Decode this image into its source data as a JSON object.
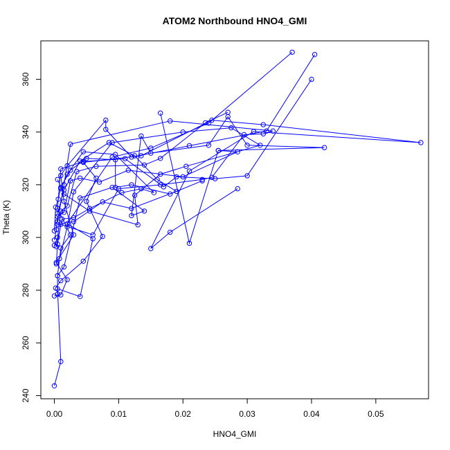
{
  "chart_data": {
    "type": "line",
    "title": "ATOM2 Northbound HNO4_GMI",
    "xlabel": "HNO4_GMI",
    "ylabel": "Theta (K)",
    "xlim": [
      -0.0021,
      0.0582
    ],
    "ylim": [
      238.8,
      374.6
    ],
    "xticks": [
      0.0,
      0.01,
      0.02,
      0.03,
      0.04,
      0.05
    ],
    "xtick_labels": [
      "0.00",
      "0.01",
      "0.02",
      "0.03",
      "0.04",
      "0.05"
    ],
    "yticks": [
      240,
      260,
      280,
      300,
      320,
      340,
      360
    ],
    "ytick_labels": [
      "240",
      "260",
      "280",
      "300",
      "320",
      "340",
      "360"
    ],
    "grid": false,
    "legend": "none",
    "colors": {
      "series": "#0000ff",
      "axis": "#000000",
      "background": "#ffffff"
    },
    "series": [
      {
        "values": [
          [
            0.0,
            243.7
          ],
          [
            0.001,
            252.9
          ],
          [
            0.0005,
            280.5
          ],
          [
            0.004,
            277.6
          ],
          [
            0.006,
            299.5
          ],
          [
            0.002,
            305.2
          ],
          [
            0.009,
            330.5
          ],
          [
            0.015,
            333.9
          ],
          [
            0.024,
            343.4
          ],
          [
            0.037,
            370.3
          ]
        ]
      },
      {
        "values": [
          [
            0.0,
            277.8
          ],
          [
            0.001,
            278.2
          ],
          [
            0.002,
            284.0
          ],
          [
            0.0003,
            290.5
          ],
          [
            0.003,
            301.0
          ],
          [
            0.0015,
            313.7
          ],
          [
            0.001,
            323.5
          ],
          [
            0.002,
            327.2
          ],
          [
            0.008,
            344.5
          ],
          [
            0.008,
            341.0
          ],
          [
            0.012,
            330.5
          ],
          [
            0.021,
            334.8
          ],
          [
            0.033,
            340.4
          ],
          [
            0.0405,
            369.4
          ]
        ]
      },
      {
        "values": [
          [
            0.0005,
            278.5
          ],
          [
            0.0005,
            285.5
          ],
          [
            0.001,
            296.0
          ],
          [
            0.0025,
            301.0
          ],
          [
            0.0005,
            311.0
          ],
          [
            0.001,
            326.0
          ],
          [
            0.0045,
            328.8
          ],
          [
            0.011,
            329.9
          ],
          [
            0.017,
            319.2
          ],
          [
            0.019,
            323.0
          ],
          [
            0.025,
            322.3
          ],
          [
            0.03,
            323.4
          ],
          [
            0.04,
            360.0
          ]
        ]
      },
      {
        "values": [
          [
            0.0002,
            280.8
          ],
          [
            0.001,
            283.6
          ],
          [
            0.0045,
            291.0
          ],
          [
            0.0075,
            300.4
          ],
          [
            0.005,
            313.7
          ],
          [
            0.0065,
            322.5
          ],
          [
            0.0045,
            328.5
          ],
          [
            0.0135,
            331.0
          ],
          [
            0.0245,
            344.5
          ],
          [
            0.0325,
            342.8
          ],
          [
            0.057,
            336.0
          ],
          [
            0.031,
            340.2
          ],
          [
            0.021,
            325.2
          ],
          [
            0.015,
            295.8
          ],
          [
            0.018,
            302.0
          ],
          [
            0.0285,
            318.5
          ]
        ]
      },
      {
        "values": [
          [
            0.0005,
            285.5
          ],
          [
            0.0015,
            288.8
          ],
          [
            0.004,
            315.0
          ],
          [
            0.009,
            319.0
          ],
          [
            0.014,
            310.0
          ],
          [
            0.012,
            308.3
          ],
          [
            0.0135,
            338.5
          ],
          [
            0.015,
            332.0
          ],
          [
            0.024,
            335.0
          ],
          [
            0.027,
            345.8
          ],
          [
            0.03,
            335.0
          ],
          [
            0.042,
            334.1
          ],
          [
            0.0255,
            333.0
          ],
          [
            0.021,
            297.8
          ],
          [
            0.0165,
            347.2
          ]
        ]
      },
      {
        "values": [
          [
            0.0003,
            290.0
          ],
          [
            0.0005,
            297.5
          ],
          [
            0.001,
            305.0
          ],
          [
            0.006,
            301.0
          ],
          [
            0.01,
            318.5
          ],
          [
            0.0165,
            320.0
          ],
          [
            0.023,
            322.0
          ],
          [
            0.0245,
            322.8
          ],
          [
            0.0295,
            339.0
          ],
          [
            0.0325,
            339.3
          ],
          [
            0.034,
            340.4
          ],
          [
            0.018,
            344.2
          ],
          [
            0.0025,
            335.4
          ],
          [
            0.0015,
            320.0
          ],
          [
            0.0005,
            306.0
          ]
        ]
      },
      {
        "values": [
          [
            0.0008,
            292.0
          ],
          [
            0.002,
            304.0
          ],
          [
            0.003,
            317.3
          ],
          [
            0.009,
            336.0
          ],
          [
            0.02,
            340.0
          ],
          [
            0.0275,
            341.6
          ],
          [
            0.032,
            335.0
          ],
          [
            0.0205,
            327.0
          ],
          [
            0.0165,
            324.0
          ],
          [
            0.0125,
            316.0
          ],
          [
            0.013,
            304.8
          ],
          [
            0.0055,
            310.0
          ],
          [
            0.0015,
            316.5
          ],
          [
            0.0005,
            322.0
          ]
        ]
      },
      {
        "values": [
          [
            0.0,
            297.0
          ],
          [
            0.0005,
            300.0
          ],
          [
            0.001,
            310.0
          ],
          [
            0.002,
            312.0
          ],
          [
            0.0035,
            325.0
          ],
          [
            0.0065,
            327.0
          ],
          [
            0.014,
            327.5
          ],
          [
            0.0165,
            330.0
          ],
          [
            0.0235,
            343.5
          ],
          [
            0.027,
            347.5
          ]
        ]
      },
      {
        "values": [
          [
            0.0,
            299.0
          ],
          [
            0.0003,
            303.0
          ],
          [
            0.0005,
            308.0
          ],
          [
            0.0015,
            309.5
          ],
          [
            0.0025,
            321.5
          ],
          [
            0.004,
            322.5
          ],
          [
            0.007,
            321.0
          ],
          [
            0.0115,
            325.5
          ],
          [
            0.02,
            323.0
          ],
          [
            0.0285,
            332.5
          ],
          [
            0.0255,
            333.0
          ]
        ]
      },
      {
        "values": [
          [
            0.0,
            302.5
          ],
          [
            0.0002,
            311.5
          ],
          [
            0.0006,
            314.5
          ],
          [
            0.001,
            319.0
          ],
          [
            0.0025,
            325.5
          ],
          [
            0.005,
            330.0
          ],
          [
            0.0095,
            329.5
          ],
          [
            0.0095,
            319.0
          ],
          [
            0.012,
            320.0
          ],
          [
            0.018,
            316.5
          ],
          [
            0.023,
            321.5
          ]
        ]
      },
      {
        "values": [
          [
            0.0005,
            305.0
          ],
          [
            0.003,
            306.0
          ],
          [
            0.0075,
            313.5
          ],
          [
            0.012,
            311.0
          ],
          [
            0.019,
            317.5
          ],
          [
            0.016,
            322.0
          ],
          [
            0.0125,
            331.0
          ],
          [
            0.0085,
            336.0
          ],
          [
            0.004,
            329.0
          ],
          [
            0.0015,
            318.0
          ],
          [
            0.0005,
            309.0
          ]
        ]
      },
      {
        "values": [
          [
            0.0003,
            296.5
          ],
          [
            0.0012,
            307.0
          ],
          [
            0.003,
            307.5
          ],
          [
            0.0055,
            311.0
          ],
          [
            0.0105,
            317.0
          ],
          [
            0.0135,
            318.5
          ],
          [
            0.0155,
            317.0
          ],
          [
            0.0095,
            331.5
          ],
          [
            0.0045,
            332.5
          ],
          [
            0.002,
            324.0
          ],
          [
            0.001,
            318.5
          ]
        ]
      }
    ]
  }
}
